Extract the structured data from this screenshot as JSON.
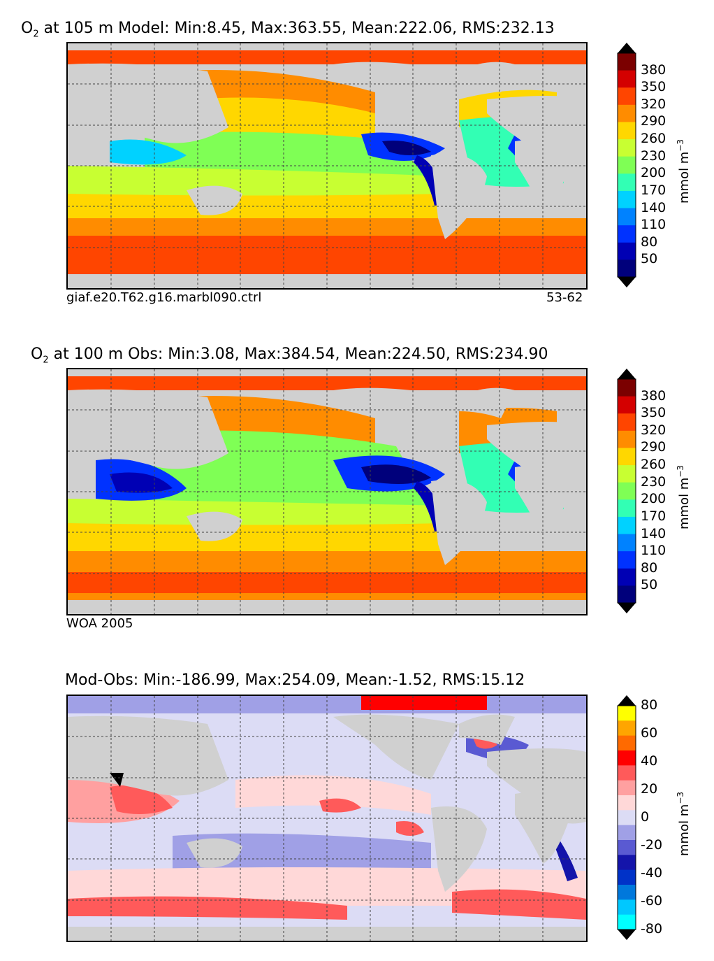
{
  "panels": [
    {
      "title_prefix": "O",
      "title_sub": "2",
      "title_rest": " at 105 m Model: Min:8.45, Max:363.55, Mean:222.06, RMS:232.13",
      "caption_left": "giaf.e20.T62.g16.marbl090.ctrl",
      "caption_right": "53-62",
      "colorbar": {
        "ticks": [
          "380",
          "350",
          "320",
          "290",
          "260",
          "230",
          "200",
          "170",
          "140",
          "110",
          "80",
          "50"
        ],
        "label": "mmol m",
        "label_sup": "−3",
        "colors": [
          "#7b0000",
          "#d40000",
          "#ff4500",
          "#ff8c00",
          "#ffd700",
          "#c8ff32",
          "#7fff55",
          "#32ffb4",
          "#00d2ff",
          "#0082ff",
          "#0032ff",
          "#0000b4",
          "#00007b"
        ]
      }
    },
    {
      "title_prefix": "O",
      "title_sub": "2",
      "title_rest": " at 100 m Obs: Min:3.08, Max:384.54, Mean:224.50, RMS:234.90",
      "caption_left": "WOA 2005",
      "caption_right": "",
      "colorbar": {
        "ticks": [
          "380",
          "350",
          "320",
          "290",
          "260",
          "230",
          "200",
          "170",
          "140",
          "110",
          "80",
          "50"
        ],
        "label": "mmol m",
        "label_sup": "−3",
        "colors": [
          "#7b0000",
          "#d40000",
          "#ff4500",
          "#ff8c00",
          "#ffd700",
          "#c8ff32",
          "#7fff55",
          "#32ffb4",
          "#00d2ff",
          "#0082ff",
          "#0032ff",
          "#0000b4",
          "#00007b"
        ]
      }
    },
    {
      "title_prefix": "",
      "title_sub": "",
      "title_rest": "Mod-Obs: Min:-186.99, Max:254.09, Mean:-1.52, RMS:15.12",
      "caption_left": "",
      "caption_right": "",
      "colorbar": {
        "ticks": [
          "80",
          "60",
          "40",
          "20",
          "0",
          "-20",
          "-40",
          "-60",
          "-80"
        ],
        "label": "mmol m",
        "label_sup": "−3",
        "colors": [
          "#ffff00",
          "#ffa500",
          "#ff6a00",
          "#ff0000",
          "#ff5a5a",
          "#ffa0a0",
          "#ffd8d8",
          "#dcdcf5",
          "#a0a0e6",
          "#5a5ad2",
          "#1414aa",
          "#0032c8",
          "#0078dc",
          "#00c8ff",
          "#00ffff"
        ]
      }
    }
  ],
  "chart_data": [
    {
      "type": "heatmap",
      "title": "O2 at 105 m Model: Min:8.45, Max:363.55, Mean:222.06, RMS:232.13",
      "colorbar_ticks": [
        50,
        80,
        110,
        140,
        170,
        200,
        230,
        260,
        290,
        320,
        350,
        380
      ],
      "units": "mmol m-3",
      "stats": {
        "min": 8.45,
        "max": 363.55,
        "mean": 222.06,
        "rms": 232.13
      }
    },
    {
      "type": "heatmap",
      "title": "O2 at 100 m Obs: Min:3.08, Max:384.54, Mean:224.50, RMS:234.90",
      "colorbar_ticks": [
        50,
        80,
        110,
        140,
        170,
        200,
        230,
        260,
        290,
        320,
        350,
        380
      ],
      "units": "mmol m-3",
      "stats": {
        "min": 3.08,
        "max": 384.54,
        "mean": 224.5,
        "rms": 234.9
      }
    },
    {
      "type": "heatmap",
      "title": "Mod-Obs: Min:-186.99, Max:254.09, Mean:-1.52, RMS:15.12",
      "colorbar_ticks": [
        -80,
        -60,
        -40,
        -20,
        0,
        20,
        40,
        60,
        80
      ],
      "units": "mmol m-3",
      "stats": {
        "min": -186.99,
        "max": 254.09,
        "mean": -1.52,
        "rms": 15.12
      }
    }
  ]
}
